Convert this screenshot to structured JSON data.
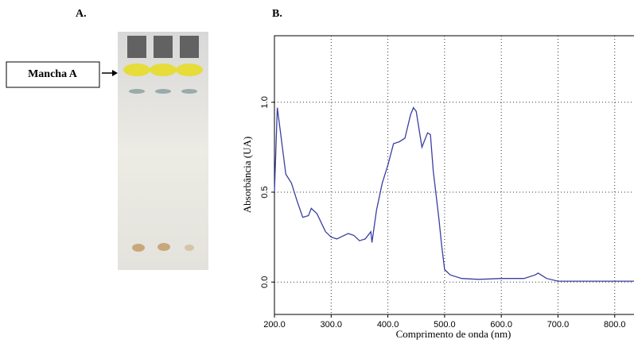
{
  "panel_a": {
    "label": "A.",
    "annotation": "Mancha A"
  },
  "chart_data": {
    "type": "line",
    "title": "B.",
    "x_label": "Comprimento de onda (nm)",
    "y_label": "Absorbância (UA)",
    "xlim": [
      200,
      834
    ],
    "ylim": [
      -0.18,
      1.37
    ],
    "xticks": [
      {
        "value": 200,
        "label": "200.0"
      },
      {
        "value": 300,
        "label": "300.0"
      },
      {
        "value": 400,
        "label": "400.0"
      },
      {
        "value": 500,
        "label": "500.0"
      },
      {
        "value": 600,
        "label": "600.0"
      },
      {
        "value": 700,
        "label": "700.0"
      },
      {
        "value": 800,
        "label": "800.0"
      }
    ],
    "yticks": [
      {
        "value": 0,
        "label": "0.0"
      },
      {
        "value": 0.5,
        "label": "0.5"
      },
      {
        "value": 1,
        "label": "1.0"
      }
    ],
    "grid": true,
    "series": [
      {
        "color": "#3a3fa0",
        "x": [
          200,
          205,
          210,
          220,
          230,
          240,
          250,
          260,
          265,
          275,
          290,
          300,
          310,
          330,
          340,
          350,
          360,
          370,
          372,
          380,
          390,
          400,
          410,
          420,
          430,
          440,
          445,
          450,
          460,
          470,
          475,
          480,
          490,
          495,
          500,
          510,
          530,
          560,
          600,
          640,
          660,
          665,
          680,
          700,
          750,
          800,
          834
        ],
        "values": [
          0.5,
          0.97,
          0.85,
          0.6,
          0.55,
          0.45,
          0.36,
          0.37,
          0.41,
          0.38,
          0.28,
          0.25,
          0.24,
          0.27,
          0.26,
          0.23,
          0.24,
          0.28,
          0.22,
          0.4,
          0.55,
          0.65,
          0.77,
          0.78,
          0.8,
          0.93,
          0.97,
          0.95,
          0.75,
          0.83,
          0.82,
          0.62,
          0.35,
          0.2,
          0.07,
          0.04,
          0.02,
          0.015,
          0.02,
          0.02,
          0.04,
          0.05,
          0.02,
          0.005,
          0.005,
          0.005,
          0.005
        ]
      }
    ]
  }
}
